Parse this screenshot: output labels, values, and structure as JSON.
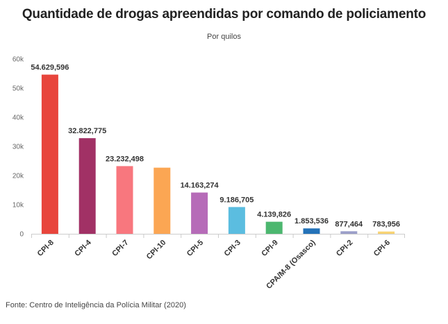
{
  "header": {
    "title": "Quantidade de drogas apreendidas por comando de policiamento",
    "subtitle": "Por quilos"
  },
  "footer": {
    "source": "Fonte: Centro de Inteligência da Polícia Militar (2020)"
  },
  "chart_data": {
    "type": "bar",
    "title": "Quantidade de drogas apreendidas por comando de policiamento",
    "subtitle": "Por quilos",
    "xlabel": "",
    "ylabel": "",
    "ylim": [
      0,
      60000
    ],
    "yticks": [
      0,
      10000,
      20000,
      30000,
      40000,
      50000,
      60000
    ],
    "ytick_labels": [
      "0",
      "10k",
      "20k",
      "30k",
      "40k",
      "50k",
      "60k"
    ],
    "grid": false,
    "categories": [
      "CPI-8",
      "CPI-4",
      "CPI-7",
      "CPI-10",
      "CPI-5",
      "CPI-3",
      "CPI-9",
      "CPA/M-8 (Osasco)",
      "CPI-2",
      "CPI-6"
    ],
    "values": [
      54629.596,
      32822.775,
      23232.498,
      22700,
      14163.274,
      9186.705,
      4139.826,
      1853.536,
      877.464,
      783.956
    ],
    "data_labels": [
      "54.629,596",
      "32.822,775",
      "23.232,498",
      "",
      "14.163,274",
      "9.186,705",
      "4.139,826",
      "1.853,536",
      "877,464",
      "783,956"
    ],
    "colors": [
      "#e8453c",
      "#a13165",
      "#f8777e",
      "#fba653",
      "#b66bb8",
      "#5bbde0",
      "#4cb76f",
      "#2472b8",
      "#9b9ec9",
      "#f8d373"
    ]
  }
}
